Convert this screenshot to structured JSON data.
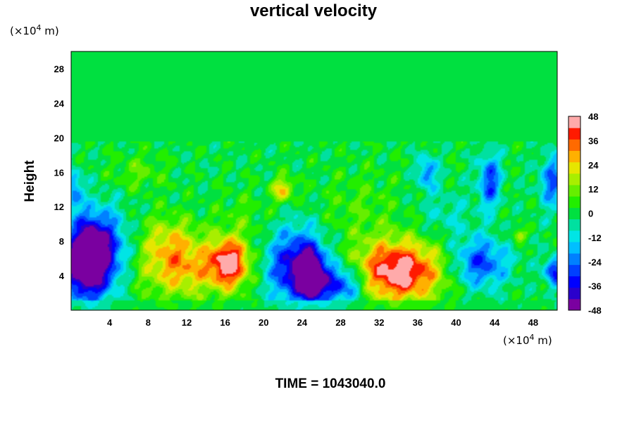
{
  "chart_data": {
    "type": "heatmap",
    "title": "vertical velocity",
    "ylabel": "Height",
    "x_unit_prefix": "(×10",
    "x_unit_exp": "4",
    "x_unit_suffix": " m)",
    "y_unit_prefix": "(×10",
    "y_unit_exp": "4",
    "y_unit_suffix": " m)",
    "xlim": [
      0,
      50.5
    ],
    "ylim": [
      0,
      30
    ],
    "x_ticks": [
      4,
      8,
      12,
      16,
      20,
      24,
      28,
      32,
      36,
      40,
      44,
      48
    ],
    "y_ticks": [
      4,
      8,
      12,
      16,
      20,
      24,
      28
    ],
    "colorbar": {
      "ticks": [
        48,
        36,
        24,
        12,
        0,
        -12,
        -24,
        -36,
        -48
      ],
      "range": [
        -48,
        48
      ]
    },
    "features": [
      {
        "x": 1.5,
        "y": 5.5,
        "value": -50,
        "sx": 1.6,
        "sy": 3.0
      },
      {
        "x": 3.0,
        "y": 7.0,
        "value": -35,
        "sx": 2.0,
        "sy": 3.2
      },
      {
        "x": 11.5,
        "y": 5.0,
        "value": 28,
        "sx": 3.2,
        "sy": 2.5
      },
      {
        "x": 10.0,
        "y": 8.5,
        "value": 14,
        "sx": 2.0,
        "sy": 2.0
      },
      {
        "x": 16.5,
        "y": 5.5,
        "value": 44,
        "sx": 1.4,
        "sy": 2.0
      },
      {
        "x": 22.0,
        "y": 14.0,
        "value": 25,
        "sx": 0.8,
        "sy": 1.0
      },
      {
        "x": 23.5,
        "y": 5.0,
        "value": -44,
        "sx": 2.0,
        "sy": 3.0
      },
      {
        "x": 25.0,
        "y": 4.0,
        "value": -48,
        "sx": 0.8,
        "sy": 1.8
      },
      {
        "x": 28.0,
        "y": 3.0,
        "value": -34,
        "sx": 1.8,
        "sy": 1.6
      },
      {
        "x": 34.0,
        "y": 4.5,
        "value": 50,
        "sx": 3.2,
        "sy": 2.5
      },
      {
        "x": 42.5,
        "y": 5.5,
        "value": -30,
        "sx": 2.0,
        "sy": 2.0
      },
      {
        "x": 46.5,
        "y": 8.7,
        "value": 22,
        "sx": 0.5,
        "sy": 0.5
      },
      {
        "x": 43.5,
        "y": 15.0,
        "value": -30,
        "sx": 0.8,
        "sy": 2.2
      },
      {
        "x": 37.0,
        "y": 16.0,
        "value": -24,
        "sx": 0.7,
        "sy": 1.4
      },
      {
        "x": 50.0,
        "y": 15.0,
        "value": -26,
        "sx": 0.9,
        "sy": 2.2
      },
      {
        "x": 50.2,
        "y": 4.5,
        "value": -34,
        "sx": 0.7,
        "sy": 1.2
      },
      {
        "x": 0.3,
        "y": 14.0,
        "value": -22,
        "sx": 0.6,
        "sy": 1.6
      },
      {
        "x": 7.0,
        "y": 16.0,
        "value": 9,
        "sx": 2.0,
        "sy": 1.5
      },
      {
        "x": 30.0,
        "y": 12.0,
        "value": 7,
        "sx": 3.0,
        "sy": 3.0
      },
      {
        "x": 18.0,
        "y": 11.0,
        "value": 6,
        "sx": 2.0,
        "sy": 2.0
      },
      {
        "x": 39.0,
        "y": 11.0,
        "value": -8,
        "sx": 2.0,
        "sy": 2.0
      }
    ]
  },
  "footer": {
    "time_label": "TIME = 1043040.0"
  }
}
